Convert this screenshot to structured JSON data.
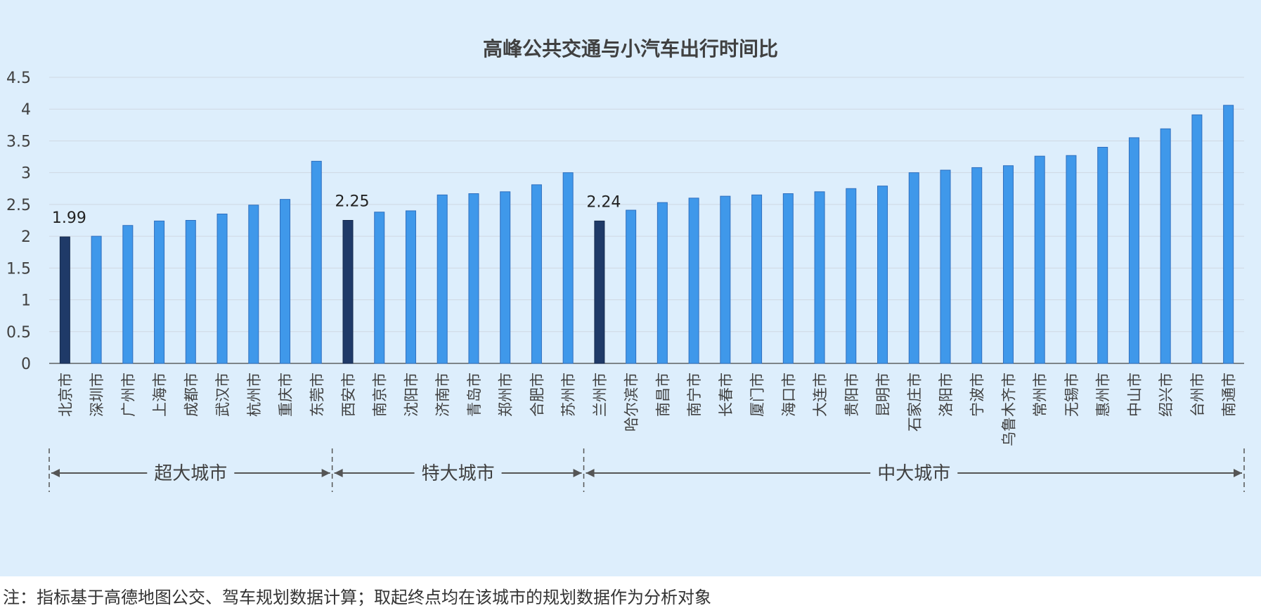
{
  "chart_data": {
    "type": "bar",
    "title": "高峰公共交通与小汽车出行时间比",
    "ylim": [
      0,
      4.5
    ],
    "yticks": [
      "0",
      "0.5",
      "1",
      "1.5",
      "2",
      "2.5",
      "3",
      "3.5",
      "4",
      "4.5"
    ],
    "grid": true,
    "categories": [
      "北京市",
      "深圳市",
      "广州市",
      "上海市",
      "成都市",
      "武汉市",
      "杭州市",
      "重庆市",
      "东莞市",
      "西安市",
      "南京市",
      "沈阳市",
      "济南市",
      "青岛市",
      "郑州市",
      "合肥市",
      "苏州市",
      "兰州市",
      "哈尔滨市",
      "南昌市",
      "南宁市",
      "长春市",
      "厦门市",
      "海口市",
      "大连市",
      "贵阳市",
      "昆明市",
      "石家庄市",
      "洛阳市",
      "宁波市",
      "乌鲁木齐市",
      "常州市",
      "无锡市",
      "惠州市",
      "中山市",
      "绍兴市",
      "台州市",
      "南通市"
    ],
    "values": [
      1.99,
      2.0,
      2.17,
      2.24,
      2.25,
      2.35,
      2.49,
      2.58,
      3.18,
      2.25,
      2.38,
      2.4,
      2.65,
      2.67,
      2.7,
      2.81,
      3.0,
      2.24,
      2.41,
      2.53,
      2.6,
      2.63,
      2.65,
      2.67,
      2.7,
      2.75,
      2.79,
      3.0,
      3.04,
      3.08,
      3.11,
      3.26,
      3.27,
      3.4,
      3.55,
      3.69,
      3.91,
      4.06
    ],
    "highlighted": [
      0,
      9,
      17
    ],
    "data_labels": [
      {
        "index": 0,
        "text": "1.99"
      },
      {
        "index": 9,
        "text": "2.25"
      },
      {
        "index": 17,
        "text": "2.24"
      }
    ],
    "groups": [
      {
        "label": "超大城市",
        "start": 0,
        "end": 8
      },
      {
        "label": "特大城市",
        "start": 9,
        "end": 16
      },
      {
        "label": "中大城市",
        "start": 17,
        "end": 37
      }
    ],
    "colors": {
      "bar": "#3f98ea",
      "bar_border": "#2f6fbf",
      "highlight": "#1f3a68",
      "grid": "#cfd8e2",
      "axis": "#444444"
    }
  },
  "footnote": "注：指标基于高德地图公交、驾车规划数据计算；取起终点均在该城市的规划数据作为分析对象"
}
